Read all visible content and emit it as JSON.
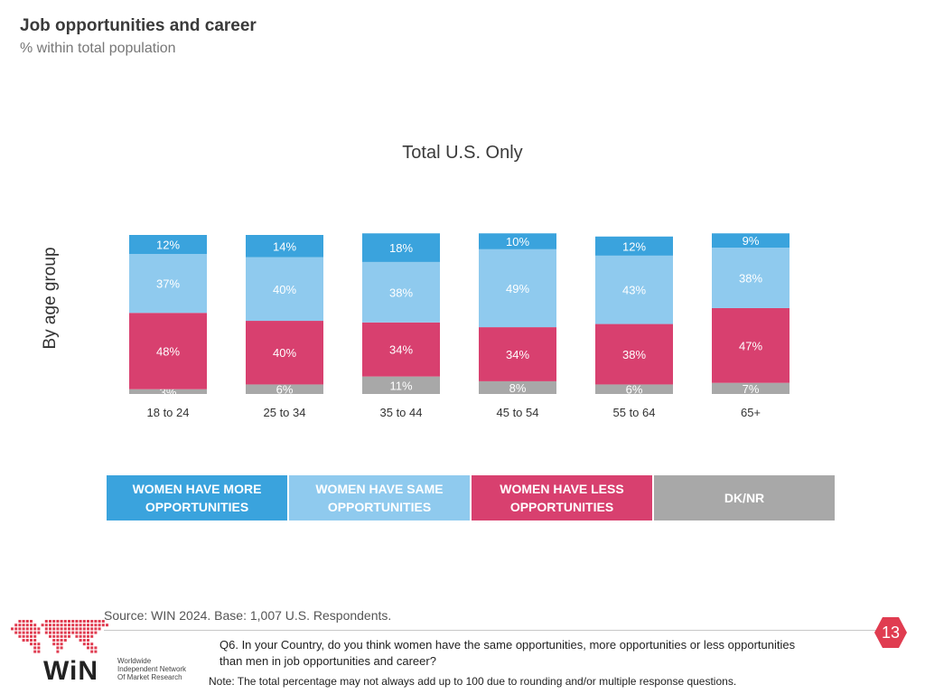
{
  "header": {
    "title": "Job opportunities and career",
    "subtitle": "% within total population"
  },
  "side_label": "By age group",
  "chart_data": {
    "type": "bar",
    "stacked": true,
    "title": "Total U.S. Only",
    "categories": [
      "18 to 24",
      "25 to 34",
      "35 to 44",
      "45 to 54",
      "55 to 64",
      "65+"
    ],
    "series": [
      {
        "name": "WOMEN HAVE MORE OPPORTUNITIES",
        "color": "#3aa3dd",
        "values": [
          12,
          14,
          18,
          10,
          12,
          9
        ]
      },
      {
        "name": "WOMEN HAVE SAME OPPORTUNITIES",
        "color": "#8fcaee",
        "values": [
          37,
          40,
          38,
          49,
          43,
          38
        ]
      },
      {
        "name": "WOMEN HAVE LESS OPPORTUNITIES",
        "color": "#d8406f",
        "values": [
          48,
          40,
          34,
          34,
          38,
          47
        ]
      },
      {
        "name": "DK/NR",
        "color": "#a8a8a8",
        "values": [
          3,
          6,
          11,
          8,
          6,
          7
        ]
      }
    ],
    "value_suffix": "%",
    "legend_position": "bottom",
    "grid": false
  },
  "footer": {
    "source": "Source: WIN 2024. Base: 1,007 U.S. Respondents.",
    "question": "Q6. In your Country, do you think women have the same opportunities, more opportunities or less opportunities than men in job opportunities and career?",
    "note": "Note: The total percentage may not always add up to 100 due to rounding and/or multiple response questions.",
    "page_number": "13"
  },
  "logo": {
    "word": "WiN",
    "subtitle_lines": [
      "Worldwide",
      "Independent Network",
      "Of Market Research"
    ]
  }
}
